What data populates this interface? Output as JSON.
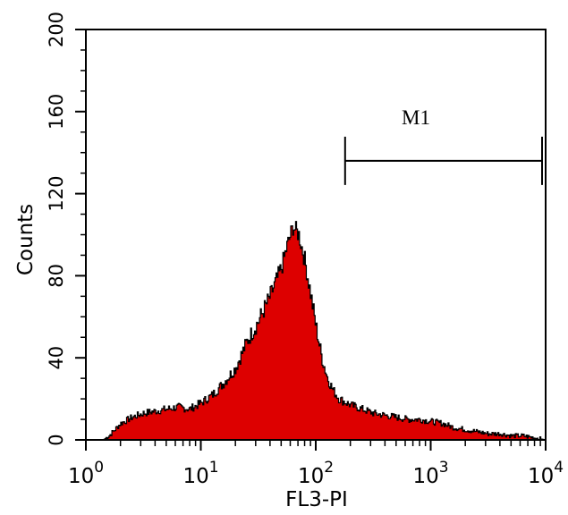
{
  "chart_data": {
    "type": "histogram",
    "xlabel": "FL3-PI",
    "ylabel": "Counts",
    "x_scale": "log10",
    "xlim": [
      1,
      10000
    ],
    "ylim": [
      0,
      200
    ],
    "x_ticks": [
      {
        "value": 1,
        "base": "10",
        "exp": "0"
      },
      {
        "value": 10,
        "base": "10",
        "exp": "1"
      },
      {
        "value": 100,
        "base": "10",
        "exp": "2"
      },
      {
        "value": 1000,
        "base": "10",
        "exp": "3"
      },
      {
        "value": 10000,
        "base": "10",
        "exp": "4"
      }
    ],
    "y_ticks": [
      "0",
      "40",
      "80",
      "120",
      "160",
      "200"
    ],
    "color": "#dd0000",
    "outline_color": "#000000",
    "histogram": {
      "log10_x": [
        0.15,
        0.2,
        0.3,
        0.4,
        0.5,
        0.6,
        0.7,
        0.8,
        0.9,
        1.0,
        1.1,
        1.2,
        1.3,
        1.4,
        1.5,
        1.6,
        1.7,
        1.75,
        1.8,
        1.85,
        1.9,
        1.95,
        2.0,
        2.05,
        2.1,
        2.15,
        2.2,
        2.3,
        2.4,
        2.5,
        2.6,
        2.7,
        2.8,
        2.9,
        3.0,
        3.1,
        3.2,
        3.3,
        3.4,
        3.5,
        3.6,
        3.7,
        3.8,
        3.9,
        4.0
      ],
      "counts": [
        0,
        2,
        8,
        11,
        13,
        14,
        15,
        16,
        15,
        18,
        22,
        28,
        35,
        48,
        58,
        70,
        84,
        95,
        104,
        100,
        88,
        72,
        55,
        40,
        30,
        24,
        20,
        17,
        15,
        13,
        12,
        11,
        10,
        10,
        9,
        8,
        6,
        5,
        4,
        3,
        3,
        2,
        2,
        1,
        0
      ]
    },
    "marker": {
      "label": "M1",
      "x_start": 180,
      "x_end": 10000,
      "y": 136
    }
  }
}
